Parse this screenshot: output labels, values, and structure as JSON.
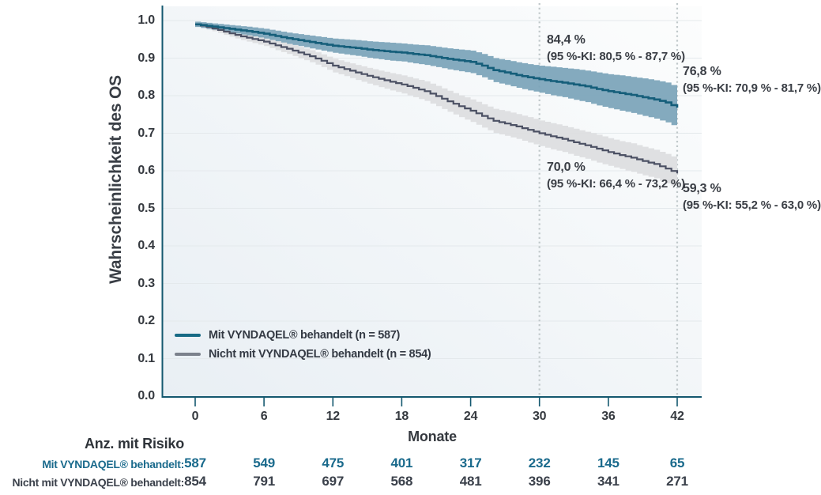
{
  "chart_data": {
    "type": "line",
    "subtype": "kaplan-meier-step",
    "title": "",
    "xlabel": "Monate",
    "ylabel": "Wahrscheinlichkeit des OS",
    "xlim": [
      0,
      42
    ],
    "ylim": [
      0.0,
      1.0
    ],
    "grid": "horizontal",
    "xticks": [
      0,
      6,
      12,
      18,
      24,
      30,
      36,
      42
    ],
    "ytick_labels": [
      "0.0",
      "0.1",
      "0.2",
      "0.3",
      "0.4",
      "0.5",
      "0.6",
      "0.7",
      "0.8",
      "0.9",
      "1.0"
    ],
    "reference_lines_x": [
      30,
      42
    ],
    "plot_bg": {
      "from": "#e9eff4",
      "to": "#fcfdfd"
    },
    "colors": {
      "grid": "#e4e9ec",
      "axis": "#14586f",
      "ref_line": "#c0c8ca",
      "tick_text": "#35393f",
      "annotation_text": "#3a3e45"
    },
    "x_months": [
      0,
      1,
      2,
      3,
      4,
      5,
      6,
      7,
      8,
      9,
      10,
      11,
      12,
      13,
      14,
      15,
      16,
      17,
      18,
      19,
      20,
      21,
      22,
      23,
      24,
      25,
      26,
      27,
      28,
      29,
      30,
      31,
      32,
      33,
      34,
      35,
      36,
      37,
      38,
      39,
      40,
      41,
      42
    ],
    "series": [
      {
        "id": "treated",
        "name": "Mit VYNDAQEL® behandelt (n = 587)",
        "n": 587,
        "color": "#155e7a",
        "band_color": "#7aa3b8",
        "band_opacity": 0.92,
        "legend_swatch_color": "#176a85",
        "survival": [
          0.99,
          0.986,
          0.982,
          0.978,
          0.974,
          0.97,
          0.965,
          0.959,
          0.953,
          0.948,
          0.943,
          0.938,
          0.933,
          0.93,
          0.927,
          0.923,
          0.92,
          0.917,
          0.915,
          0.911,
          0.908,
          0.903,
          0.898,
          0.894,
          0.89,
          0.88,
          0.868,
          0.862,
          0.855,
          0.849,
          0.844,
          0.839,
          0.835,
          0.83,
          0.825,
          0.818,
          0.812,
          0.807,
          0.802,
          0.796,
          0.79,
          0.782,
          0.768
        ],
        "ci_half": [
          0.007,
          0.008,
          0.009,
          0.01,
          0.011,
          0.012,
          0.013,
          0.014,
          0.015,
          0.016,
          0.017,
          0.018,
          0.019,
          0.02,
          0.021,
          0.022,
          0.023,
          0.024,
          0.024,
          0.025,
          0.026,
          0.027,
          0.028,
          0.029,
          0.03,
          0.031,
          0.032,
          0.033,
          0.034,
          0.035,
          0.036,
          0.038,
          0.039,
          0.041,
          0.042,
          0.044,
          0.045,
          0.047,
          0.048,
          0.05,
          0.051,
          0.053,
          0.054
        ]
      },
      {
        "id": "untreated",
        "name": "Nicht mit VYNDAQEL® behandelt (n = 854)",
        "n": 854,
        "color": "#4c5164",
        "band_color": "#dddee0",
        "band_opacity": 0.95,
        "legend_swatch_color": "#7b818c",
        "survival": [
          0.99,
          0.983,
          0.975,
          0.966,
          0.958,
          0.951,
          0.944,
          0.934,
          0.925,
          0.915,
          0.905,
          0.893,
          0.88,
          0.871,
          0.862,
          0.853,
          0.845,
          0.837,
          0.83,
          0.821,
          0.812,
          0.799,
          0.785,
          0.772,
          0.76,
          0.746,
          0.733,
          0.726,
          0.718,
          0.709,
          0.7,
          0.692,
          0.685,
          0.676,
          0.668,
          0.659,
          0.65,
          0.642,
          0.635,
          0.626,
          0.618,
          0.606,
          0.593
        ],
        "ci_half": [
          0.006,
          0.007,
          0.008,
          0.009,
          0.01,
          0.011,
          0.012,
          0.013,
          0.014,
          0.015,
          0.016,
          0.017,
          0.018,
          0.019,
          0.02,
          0.021,
          0.022,
          0.023,
          0.024,
          0.025,
          0.026,
          0.027,
          0.028,
          0.029,
          0.03,
          0.031,
          0.032,
          0.033,
          0.033,
          0.034,
          0.034,
          0.035,
          0.035,
          0.036,
          0.036,
          0.037,
          0.037,
          0.037,
          0.038,
          0.038,
          0.038,
          0.039,
          0.039
        ]
      }
    ],
    "annotations": [
      {
        "id": "treated-30",
        "value": "84,4 %",
        "ci": "(95 %-KI: 80,5 % - 87,7 %)",
        "x_month": 30
      },
      {
        "id": "treated-42",
        "value": "76,8 %",
        "ci": "(95 %-KI: 70,9 % - 81,7 %)",
        "x_month": 42
      },
      {
        "id": "untreated-30",
        "value": "70,0 %",
        "ci": "(95 %-KI: 66,4 % - 73,2 %)",
        "x_month": 30
      },
      {
        "id": "untreated-42",
        "value": "59,3 %",
        "ci": "(95 %-KI: 55,2 % - 63,0 %)",
        "x_month": 42
      }
    ],
    "legend": {
      "position": "inside-lower-left"
    }
  },
  "risk_table": {
    "title": "Anz. mit Risiko",
    "time_points": [
      0,
      6,
      12,
      18,
      24,
      30,
      36,
      42
    ],
    "rows": [
      {
        "label": "Mit VYNDAQEL® behandelt:",
        "color": "#1a6a8c",
        "values": [
          "587",
          "549",
          "475",
          "401",
          "317",
          "232",
          "145",
          "65"
        ]
      },
      {
        "label": "Nicht mit VYNDAQEL® behandelt:",
        "color": "#3b414b",
        "values": [
          "854",
          "791",
          "697",
          "568",
          "481",
          "396",
          "341",
          "271"
        ]
      }
    ]
  }
}
